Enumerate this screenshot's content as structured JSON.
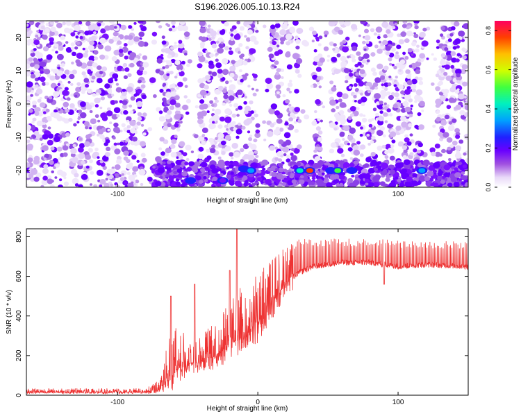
{
  "chart_data": [
    {
      "type": "heatmap",
      "title": "S196.2026.005.10.13.R24",
      "xlabel": "Height of straight line (km)",
      "ylabel": "Frequency (Hz)",
      "xlim": [
        -165,
        150
      ],
      "ylim": [
        -25,
        25
      ],
      "x_ticks": [
        -100,
        0,
        100
      ],
      "y_ticks": [
        -20,
        -10,
        0,
        10,
        20
      ],
      "colorbar": {
        "label": "Normalized spectral amplitude",
        "range": [
          0,
          0.85
        ],
        "ticks": [
          "0.0",
          "0.2",
          "0.4",
          "0.6",
          "0.8"
        ]
      },
      "bright_features": [
        {
          "x": -48,
          "y": -23,
          "amplitude": 0.25
        },
        {
          "x": -25,
          "y": -23,
          "amplitude": 0.22
        },
        {
          "x": -10,
          "y": -19.5,
          "amplitude": 0.3
        },
        {
          "x": -5,
          "y": -20,
          "amplitude": 0.35
        },
        {
          "x": 30,
          "y": -20,
          "amplitude": 0.45
        },
        {
          "x": 37,
          "y": -20,
          "amplitude": 0.78
        },
        {
          "x": 52,
          "y": -20,
          "amplitude": 0.3
        },
        {
          "x": 57,
          "y": -20,
          "amplitude": 0.55
        },
        {
          "x": 67,
          "y": -20,
          "amplitude": 0.3
        },
        {
          "x": 117,
          "y": -20,
          "amplitude": 0.4
        }
      ],
      "grid": false
    },
    {
      "type": "line",
      "title": "",
      "xlabel": "Height of straight line (km)",
      "ylabel": "SNR (10 * v/v)",
      "xlim": [
        -165,
        150
      ],
      "ylim": [
        0,
        840
      ],
      "x_ticks": [
        -100,
        0,
        100
      ],
      "y_ticks": [
        0,
        200,
        400,
        600,
        800
      ],
      "color": "#ee3333",
      "envelope": {
        "x": [
          -165,
          -80,
          -70,
          -65,
          -60,
          -50,
          -40,
          -30,
          -20,
          -10,
          0,
          10,
          20,
          30,
          40,
          60,
          80,
          90,
          100,
          120,
          150
        ],
        "base": [
          15,
          15,
          30,
          80,
          120,
          160,
          170,
          200,
          260,
          310,
          370,
          470,
          570,
          620,
          650,
          670,
          670,
          660,
          650,
          660,
          650
        ],
        "peak": [
          35,
          35,
          80,
          250,
          360,
          300,
          310,
          380,
          500,
          560,
          650,
          700,
          760,
          790,
          790,
          790,
          790,
          790,
          780,
          780,
          780
        ]
      },
      "spikes": [
        {
          "x": -15,
          "y": 840
        },
        {
          "x": -20,
          "y": 630
        },
        {
          "x": -62,
          "y": 500
        },
        {
          "x": -45,
          "y": 560
        },
        {
          "x": 90,
          "y": 560,
          "direction": "down"
        }
      ],
      "grid": false
    }
  ]
}
